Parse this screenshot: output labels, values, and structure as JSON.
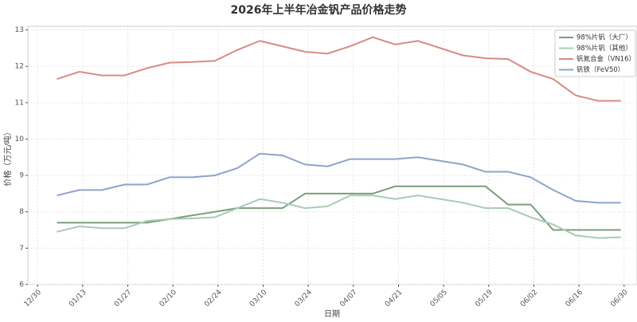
{
  "chart_data": {
    "type": "line",
    "title": "2026年上半年冶金钒产品价格走势",
    "x_label": "日期",
    "y_label": "价格（万元/吨）",
    "x": [
      "01/05",
      "01/12",
      "01/19",
      "01/26",
      "02/02",
      "02/09",
      "02/16",
      "02/23",
      "03/02",
      "03/09",
      "03/16",
      "03/23",
      "03/30",
      "04/06",
      "04/13",
      "04/20",
      "04/27",
      "05/04",
      "05/11",
      "05/18",
      "05/25",
      "06/01",
      "06/08",
      "06/15",
      "06/22",
      "06/29"
    ],
    "xlim": [
      "12/27",
      "07/04"
    ],
    "xticks": [
      "12/30",
      "01/13",
      "01/27",
      "02/10",
      "02/24",
      "03/10",
      "03/24",
      "04/07",
      "04/21",
      "05/05",
      "05/19",
      "06/02",
      "06/16",
      "06/30"
    ],
    "ylim": [
      6,
      13.1
    ],
    "yticks": [
      6,
      7,
      8,
      9,
      10,
      11,
      12,
      13
    ],
    "grid": true,
    "legend": "upper right",
    "series": [
      {
        "name": "98%片钒（大厂）",
        "color": "#7a9e7e",
        "values": [
          7.7,
          7.7,
          7.7,
          7.7,
          7.7,
          7.8,
          7.9,
          8.0,
          8.1,
          8.1,
          8.1,
          8.5,
          8.5,
          8.5,
          8.5,
          8.7,
          8.7,
          8.7,
          8.7,
          8.7,
          8.2,
          8.2,
          7.5,
          7.5,
          7.5,
          7.5
        ]
      },
      {
        "name": "98%片钒（其他）",
        "color": "#a8cbb4",
        "values": [
          7.45,
          7.6,
          7.55,
          7.55,
          7.75,
          7.8,
          7.82,
          7.85,
          8.1,
          8.35,
          8.25,
          8.1,
          8.15,
          8.45,
          8.45,
          8.35,
          8.45,
          8.35,
          8.25,
          8.1,
          8.1,
          7.85,
          7.65,
          7.35,
          7.28,
          7.3
        ]
      },
      {
        "name": "钒氮合金（VN16）",
        "color": "#d98a85",
        "values": [
          11.65,
          11.85,
          11.75,
          11.75,
          11.95,
          12.1,
          12.12,
          12.15,
          12.45,
          12.7,
          12.55,
          12.4,
          12.35,
          12.55,
          12.8,
          12.6,
          12.7,
          12.5,
          12.3,
          12.22,
          12.2,
          11.85,
          11.65,
          11.2,
          11.05,
          11.05
        ]
      },
      {
        "name": "钒铁（FeV50）",
        "color": "#8fa3c9",
        "values": [
          8.45,
          8.6,
          8.6,
          8.75,
          8.75,
          8.95,
          8.95,
          9.0,
          9.2,
          9.6,
          9.55,
          9.3,
          9.25,
          9.45,
          9.45,
          9.45,
          9.5,
          9.4,
          9.3,
          9.1,
          9.1,
          8.95,
          8.6,
          8.3,
          8.25,
          8.25
        ]
      }
    ]
  }
}
